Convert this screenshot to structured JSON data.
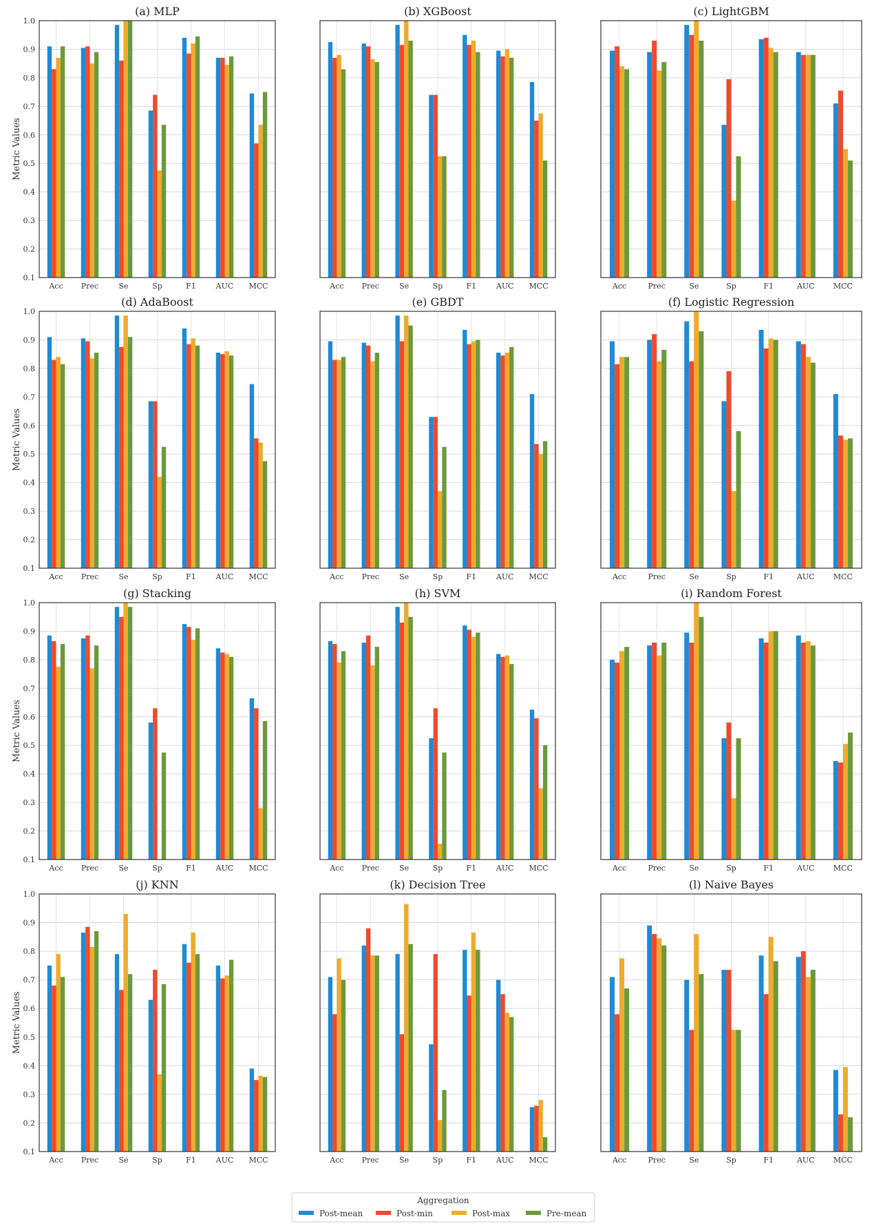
{
  "colors": {
    "Post-mean": "#1f8ad6",
    "Post-min": "#f04a2c",
    "Post-max": "#f0aa2c",
    "Pre-mean": "#6a9a3c"
  },
  "legend": {
    "title": "Aggregation",
    "placement": "bottom-center",
    "entries": [
      "Post-mean",
      "Post-min",
      "Post-max",
      "Pre-mean"
    ]
  },
  "chart_data": [
    {
      "type": "bar",
      "title": "(a) MLP",
      "ylabel": "Metric Values",
      "ylim": [
        0.1,
        1.0
      ],
      "grid": true,
      "categories": [
        "Acc",
        "Prec",
        "Se",
        "Sp",
        "F1",
        "AUC",
        "MCC"
      ],
      "series": [
        {
          "name": "Post-mean",
          "values": [
            0.91,
            0.905,
            0.985,
            0.685,
            0.94,
            0.87,
            0.745
          ]
        },
        {
          "name": "Post-min",
          "values": [
            0.83,
            0.91,
            0.86,
            0.74,
            0.885,
            0.87,
            0.57
          ]
        },
        {
          "name": "Post-max",
          "values": [
            0.87,
            0.85,
            1.0,
            0.475,
            0.92,
            0.845,
            0.635
          ]
        },
        {
          "name": "Pre-mean",
          "values": [
            0.91,
            0.89,
            1.0,
            0.635,
            0.945,
            0.875,
            0.75
          ]
        }
      ]
    },
    {
      "type": "bar",
      "title": "(b) XGBoost",
      "ylabel": "",
      "ylim": [
        0.1,
        1.0
      ],
      "grid": true,
      "categories": [
        "Acc",
        "Prec",
        "Se",
        "Sp",
        "F1",
        "AUC",
        "MCC"
      ],
      "series": [
        {
          "name": "Post-mean",
          "values": [
            0.925,
            0.92,
            0.985,
            0.74,
            0.95,
            0.895,
            0.785
          ]
        },
        {
          "name": "Post-min",
          "values": [
            0.87,
            0.91,
            0.915,
            0.74,
            0.915,
            0.875,
            0.65
          ]
        },
        {
          "name": "Post-max",
          "values": [
            0.88,
            0.865,
            1.0,
            0.525,
            0.93,
            0.9,
            0.675
          ]
        },
        {
          "name": "Pre-mean",
          "values": [
            0.83,
            0.855,
            0.93,
            0.525,
            0.89,
            0.87,
            0.51
          ]
        }
      ]
    },
    {
      "type": "bar",
      "title": "(c) LightGBM",
      "ylabel": "",
      "ylim": [
        0.1,
        1.0
      ],
      "grid": true,
      "categories": [
        "Acc",
        "Prec",
        "Se",
        "Sp",
        "F1",
        "AUC",
        "MCC"
      ],
      "series": [
        {
          "name": "Post-mean",
          "values": [
            0.895,
            0.89,
            0.985,
            0.635,
            0.935,
            0.89,
            0.71
          ]
        },
        {
          "name": "Post-min",
          "values": [
            0.91,
            0.93,
            0.95,
            0.795,
            0.94,
            0.88,
            0.755
          ]
        },
        {
          "name": "Post-max",
          "values": [
            0.84,
            0.825,
            1.0,
            0.37,
            0.905,
            0.88,
            0.55
          ]
        },
        {
          "name": "Pre-mean",
          "values": [
            0.83,
            0.855,
            0.93,
            0.525,
            0.89,
            0.88,
            0.51
          ]
        }
      ]
    },
    {
      "type": "bar",
      "title": "(d) AdaBoost",
      "ylabel": "Metric Values",
      "ylim": [
        0.1,
        1.0
      ],
      "grid": true,
      "categories": [
        "Acc",
        "Prec",
        "Se",
        "Sp",
        "F1",
        "AUC",
        "MCC"
      ],
      "series": [
        {
          "name": "Post-mean",
          "values": [
            0.91,
            0.905,
            0.985,
            0.685,
            0.94,
            0.855,
            0.745
          ]
        },
        {
          "name": "Post-min",
          "values": [
            0.83,
            0.895,
            0.875,
            0.685,
            0.885,
            0.85,
            0.555
          ]
        },
        {
          "name": "Post-max",
          "values": [
            0.84,
            0.835,
            0.985,
            0.42,
            0.905,
            0.86,
            0.54
          ]
        },
        {
          "name": "Pre-mean",
          "values": [
            0.815,
            0.855,
            0.91,
            0.525,
            0.88,
            0.845,
            0.475
          ]
        }
      ]
    },
    {
      "type": "bar",
      "title": "(e) GBDT",
      "ylabel": "",
      "ylim": [
        0.1,
        1.0
      ],
      "grid": true,
      "categories": [
        "Acc",
        "Prec",
        "Se",
        "Sp",
        "F1",
        "AUC",
        "MCC"
      ],
      "series": [
        {
          "name": "Post-mean",
          "values": [
            0.895,
            0.89,
            0.985,
            0.63,
            0.935,
            0.855,
            0.71
          ]
        },
        {
          "name": "Post-min",
          "values": [
            0.83,
            0.88,
            0.895,
            0.63,
            0.885,
            0.845,
            0.535
          ]
        },
        {
          "name": "Post-max",
          "values": [
            0.83,
            0.825,
            0.985,
            0.37,
            0.895,
            0.855,
            0.5
          ]
        },
        {
          "name": "Pre-mean",
          "values": [
            0.84,
            0.855,
            0.95,
            0.525,
            0.9,
            0.875,
            0.545
          ]
        }
      ]
    },
    {
      "type": "bar",
      "title": "(f) Logistic Regression",
      "ylabel": "",
      "ylim": [
        0.1,
        1.0
      ],
      "grid": true,
      "categories": [
        "Acc",
        "Prec",
        "Se",
        "Sp",
        "F1",
        "AUC",
        "MCC"
      ],
      "series": [
        {
          "name": "Post-mean",
          "values": [
            0.895,
            0.9,
            0.965,
            0.685,
            0.935,
            0.895,
            0.71
          ]
        },
        {
          "name": "Post-min",
          "values": [
            0.815,
            0.92,
            0.825,
            0.79,
            0.87,
            0.885,
            0.565
          ]
        },
        {
          "name": "Post-max",
          "values": [
            0.84,
            0.825,
            1.0,
            0.37,
            0.905,
            0.84,
            0.55
          ]
        },
        {
          "name": "Pre-mean",
          "values": [
            0.84,
            0.865,
            0.93,
            0.58,
            0.9,
            0.82,
            0.555
          ]
        }
      ]
    },
    {
      "type": "bar",
      "title": "(g) Stacking",
      "ylabel": "Metric Values",
      "ylim": [
        0.1,
        1.0
      ],
      "grid": true,
      "categories": [
        "Acc",
        "Prec",
        "Se",
        "Sp",
        "F1",
        "AUC",
        "MCC"
      ],
      "series": [
        {
          "name": "Post-mean",
          "values": [
            0.885,
            0.875,
            0.985,
            0.58,
            0.925,
            0.84,
            0.665
          ]
        },
        {
          "name": "Post-min",
          "values": [
            0.865,
            0.885,
            0.95,
            0.63,
            0.915,
            0.825,
            0.63
          ]
        },
        {
          "name": "Post-max",
          "values": [
            0.775,
            0.77,
            1.0,
            0.1,
            0.87,
            0.82,
            0.28
          ]
        },
        {
          "name": "Pre-mean",
          "values": [
            0.855,
            0.85,
            0.985,
            0.475,
            0.91,
            0.81,
            0.585
          ]
        }
      ]
    },
    {
      "type": "bar",
      "title": "(h) SVM",
      "ylabel": "",
      "ylim": [
        0.1,
        1.0
      ],
      "grid": true,
      "categories": [
        "Acc",
        "Prec",
        "Se",
        "Sp",
        "F1",
        "AUC",
        "MCC"
      ],
      "series": [
        {
          "name": "Post-mean",
          "values": [
            0.865,
            0.86,
            0.985,
            0.525,
            0.92,
            0.82,
            0.625
          ]
        },
        {
          "name": "Post-min",
          "values": [
            0.855,
            0.885,
            0.93,
            0.63,
            0.905,
            0.81,
            0.595
          ]
        },
        {
          "name": "Post-max",
          "values": [
            0.79,
            0.78,
            1.0,
            0.155,
            0.88,
            0.815,
            0.35
          ]
        },
        {
          "name": "Pre-mean",
          "values": [
            0.83,
            0.845,
            0.95,
            0.475,
            0.895,
            0.785,
            0.5
          ]
        }
      ]
    },
    {
      "type": "bar",
      "title": "(i) Random Forest",
      "ylabel": "",
      "ylim": [
        0.1,
        1.0
      ],
      "grid": true,
      "categories": [
        "Acc",
        "Prec",
        "Se",
        "Sp",
        "F1",
        "AUC",
        "MCC"
      ],
      "series": [
        {
          "name": "Post-mean",
          "values": [
            0.8,
            0.85,
            0.895,
            0.525,
            0.875,
            0.885,
            0.445
          ]
        },
        {
          "name": "Post-min",
          "values": [
            0.79,
            0.86,
            0.86,
            0.58,
            0.86,
            0.86,
            0.44
          ]
        },
        {
          "name": "Post-max",
          "values": [
            0.83,
            0.815,
            1.0,
            0.315,
            0.9,
            0.865,
            0.505
          ]
        },
        {
          "name": "Pre-mean",
          "values": [
            0.845,
            0.86,
            0.95,
            0.525,
            0.9,
            0.85,
            0.545
          ]
        }
      ]
    },
    {
      "type": "bar",
      "title": "(j) KNN",
      "ylabel": "Metric Values",
      "ylim": [
        0.1,
        1.0
      ],
      "grid": true,
      "categories": [
        "Acc",
        "Prec",
        "Se",
        "Sp",
        "F1",
        "AUC",
        "MCC"
      ],
      "series": [
        {
          "name": "Post-mean",
          "values": [
            0.75,
            0.865,
            0.79,
            0.63,
            0.825,
            0.75,
            0.39
          ]
        },
        {
          "name": "Post-min",
          "values": [
            0.68,
            0.885,
            0.665,
            0.735,
            0.76,
            0.705,
            0.35
          ]
        },
        {
          "name": "Post-max",
          "values": [
            0.79,
            0.815,
            0.93,
            0.37,
            0.865,
            0.715,
            0.365
          ]
        },
        {
          "name": "Pre-mean",
          "values": [
            0.71,
            0.87,
            0.72,
            0.685,
            0.79,
            0.77,
            0.36
          ]
        }
      ]
    },
    {
      "type": "bar",
      "title": "(k) Decision Tree",
      "ylabel": "",
      "ylim": [
        0.1,
        1.0
      ],
      "grid": true,
      "categories": [
        "Acc",
        "Prec",
        "Se",
        "Sp",
        "F1",
        "AUC",
        "MCC"
      ],
      "series": [
        {
          "name": "Post-mean",
          "values": [
            0.71,
            0.82,
            0.79,
            0.475,
            0.805,
            0.7,
            0.255
          ]
        },
        {
          "name": "Post-min",
          "values": [
            0.58,
            0.88,
            0.51,
            0.79,
            0.645,
            0.65,
            0.26
          ]
        },
        {
          "name": "Post-max",
          "values": [
            0.775,
            0.785,
            0.965,
            0.21,
            0.865,
            0.585,
            0.28
          ]
        },
        {
          "name": "Pre-mean",
          "values": [
            0.7,
            0.785,
            0.825,
            0.315,
            0.805,
            0.57,
            0.15
          ]
        }
      ]
    },
    {
      "type": "bar",
      "title": "(l) Naive Bayes",
      "ylabel": "",
      "ylim": [
        0.1,
        1.0
      ],
      "grid": true,
      "categories": [
        "Acc",
        "Prec",
        "Se",
        "Sp",
        "F1",
        "AUC",
        "MCC"
      ],
      "series": [
        {
          "name": "Post-mean",
          "values": [
            0.71,
            0.89,
            0.7,
            0.735,
            0.785,
            0.78,
            0.385
          ]
        },
        {
          "name": "Post-min",
          "values": [
            0.58,
            0.86,
            0.525,
            0.735,
            0.65,
            0.8,
            0.23
          ]
        },
        {
          "name": "Post-max",
          "values": [
            0.775,
            0.845,
            0.86,
            0.525,
            0.85,
            0.71,
            0.395
          ]
        },
        {
          "name": "Pre-mean",
          "values": [
            0.67,
            0.82,
            0.72,
            0.525,
            0.765,
            0.735,
            0.22
          ]
        }
      ]
    }
  ],
  "yticks": [
    "0.1",
    "0.2",
    "0.3",
    "0.4",
    "0.5",
    "0.6",
    "0.7",
    "0.8",
    "0.9",
    "1.0"
  ]
}
